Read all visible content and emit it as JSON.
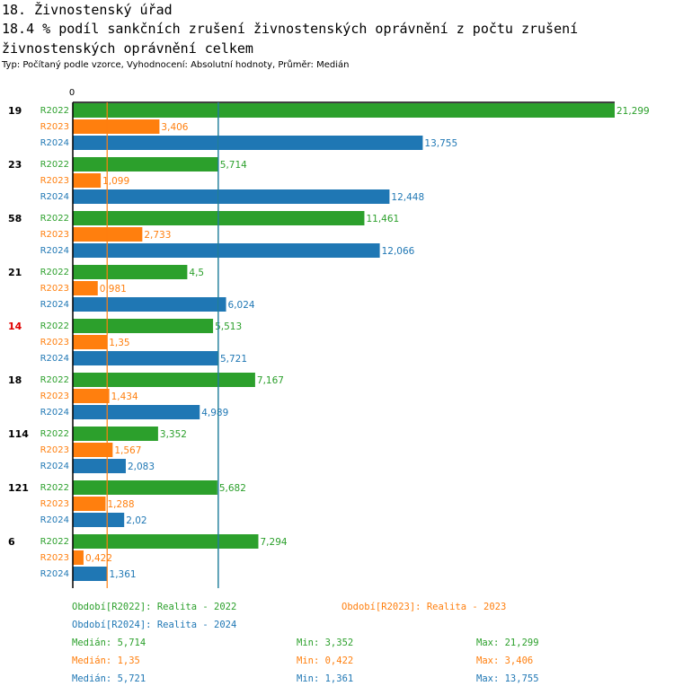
{
  "header": {
    "title": "18. Živnostenský úřad",
    "subtitle": "18.4 % podíl sankčních zrušení živnostenských oprávnění z počtu zrušení živnostenských oprávnění  celkem",
    "type_line": "Typ: Počítaný podle vzorce, Vyhodnocení: Absolutní hodnoty, Průměr: Medián"
  },
  "colors": {
    "R2022": "#2ca02c",
    "R2023": "#ff7f0e",
    "R2024": "#1f77b4",
    "highlight": "#e00000",
    "axis": "#000000"
  },
  "chart_data": {
    "type": "bar",
    "orientation": "horizontal",
    "title": "18.4 % podíl sankčních zrušení živnostenských oprávnění z počtu zrušení živnostenských oprávnění  celkem",
    "axis_zero_label": "0",
    "xlim": [
      0,
      21.299
    ],
    "categories": [
      "19",
      "23",
      "58",
      "21",
      "14",
      "18",
      "114",
      "121",
      "6"
    ],
    "highlighted_category": "14",
    "series": [
      {
        "name": "R2022",
        "values": [
          21.299,
          5.714,
          11.461,
          4.5,
          5.513,
          7.167,
          3.352,
          5.682,
          7.294
        ],
        "labels": [
          "21,299",
          "5,714",
          "11,461",
          "4,5",
          "5,513",
          "7,167",
          "3,352",
          "5,682",
          "7,294"
        ]
      },
      {
        "name": "R2023",
        "values": [
          3.406,
          1.099,
          2.733,
          0.981,
          1.35,
          1.434,
          1.567,
          1.288,
          0.422
        ],
        "labels": [
          "3,406",
          "1,099",
          "2,733",
          "0,981",
          "1,35",
          "1,434",
          "1,567",
          "1,288",
          "0,422"
        ]
      },
      {
        "name": "R2024",
        "values": [
          13.755,
          12.448,
          12.066,
          6.024,
          5.721,
          4.989,
          2.083,
          2.02,
          1.361
        ],
        "labels": [
          "13,755",
          "12,448",
          "12,066",
          "6,024",
          "5,721",
          "4,989",
          "2,083",
          "2,02",
          "1,361"
        ]
      }
    ],
    "median_lines": [
      {
        "series": "R2022",
        "value": 5.714
      },
      {
        "series": "R2023",
        "value": 1.35
      },
      {
        "series": "R2024",
        "value": 5.721
      }
    ]
  },
  "legend": {
    "periods": [
      {
        "key": "R2022",
        "text": "Období[R2022]: Realita - 2022"
      },
      {
        "key": "R2023",
        "text": "Období[R2023]: Realita - 2023"
      },
      {
        "key": "R2024",
        "text": "Období[R2024]: Realita - 2024"
      }
    ],
    "stats": [
      {
        "key": "R2022",
        "median": "Medián: 5,714",
        "min": "Min: 3,352",
        "max": "Max: 21,299"
      },
      {
        "key": "R2023",
        "median": "Medián: 1,35",
        "min": "Min: 0,422",
        "max": "Max: 3,406"
      },
      {
        "key": "R2024",
        "median": "Medián: 5,721",
        "min": "Min: 1,361",
        "max": "Max: 13,755"
      }
    ]
  }
}
